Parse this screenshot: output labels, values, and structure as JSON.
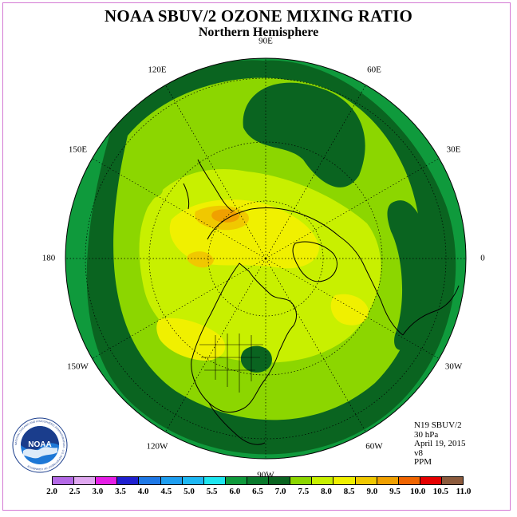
{
  "header": {
    "title": "NOAA SBUV/2 OZONE MIXING RATIO",
    "subtitle": "Northern Hemisphere"
  },
  "map": {
    "projection": "north polar stereographic",
    "longitude_labels": [
      {
        "text": "90E",
        "lon": 90
      },
      {
        "text": "60E",
        "lon": 60
      },
      {
        "text": "30E",
        "lon": 30
      },
      {
        "text": "0",
        "lon": 0
      },
      {
        "text": "30W",
        "lon": -30
      },
      {
        "text": "60W",
        "lon": -60
      },
      {
        "text": "90W",
        "lon": -90
      },
      {
        "text": "120W",
        "lon": -120
      },
      {
        "text": "150W",
        "lon": -150
      },
      {
        "text": "180",
        "lon": 180
      },
      {
        "text": "150E",
        "lon": 150
      },
      {
        "text": "120E",
        "lon": 120
      }
    ],
    "field": "ozone mixing ratio",
    "field_unit": "PPM",
    "features": [
      "coastlines",
      "US state boundaries",
      "lat/lon dotted graticule"
    ]
  },
  "meta": {
    "satellite": "N19 SBUV/2",
    "level": "30 hPa",
    "date": "April 19, 2015",
    "version": "v8",
    "unit": "PPM"
  },
  "logo": {
    "text": "NOAA",
    "ring_text": "NATIONAL OCEANIC AND ATMOSPHERIC ADMINISTRATION · U.S. DEPARTMENT OF COMMERCE"
  },
  "colorbar": {
    "labels": [
      "2.0",
      "2.5",
      "3.0",
      "3.5",
      "4.0",
      "4.5",
      "5.0",
      "5.5",
      "6.0",
      "6.5",
      "7.0",
      "7.5",
      "8.0",
      "8.5",
      "9.0",
      "9.5",
      "10.0",
      "10.5",
      "11.0"
    ],
    "colors": [
      "#b469e6",
      "#e0a8f0",
      "#e61ee6",
      "#2020d0",
      "#1e78e6",
      "#1e9ef0",
      "#1eb8f4",
      "#1ee6f0",
      "#0f9a3c",
      "#0a7a2c",
      "#0a6420",
      "#8cd600",
      "#c8f000",
      "#f0f000",
      "#f0c800",
      "#f0a000",
      "#f06400",
      "#e60000",
      "#8c5a3c"
    ]
  }
}
